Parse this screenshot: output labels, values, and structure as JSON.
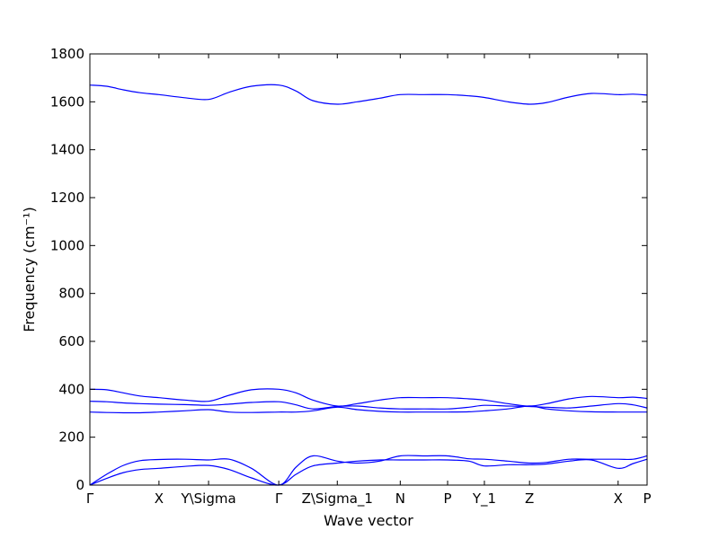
{
  "chart_data": {
    "type": "line",
    "xlabel": "Wave vector",
    "ylabel": "Frequency (cm⁻¹)",
    "ylim": [
      0,
      1800
    ],
    "xlim": [
      0,
      1
    ],
    "yticks": [
      0,
      200,
      400,
      600,
      800,
      1000,
      1200,
      1400,
      1600,
      1800
    ],
    "xticks": [
      {
        "label": "Γ",
        "x": 0.0
      },
      {
        "label": "X",
        "x": 0.124
      },
      {
        "label": "Y\\Sigma",
        "x": 0.213
      },
      {
        "label": "Γ",
        "x": 0.339
      },
      {
        "label": "Z\\Sigma_1",
        "x": 0.444
      },
      {
        "label": "N",
        "x": 0.557
      },
      {
        "label": "P",
        "x": 0.642
      },
      {
        "label": "Y_1",
        "x": 0.708
      },
      {
        "label": "Z",
        "x": 0.789
      },
      {
        "label": "X",
        "x": 0.948
      },
      {
        "label": "P",
        "x": 1.0
      }
    ],
    "line_color": "#0000ff",
    "grid": false,
    "series": [
      {
        "x": [
          0,
          0.03,
          0.06,
          0.09,
          0.124,
          0.17,
          0.213,
          0.25,
          0.29,
          0.339,
          0.37,
          0.4,
          0.444,
          0.48,
          0.52,
          0.557,
          0.6,
          0.642,
          0.68,
          0.708,
          0.75,
          0.789,
          0.82,
          0.86,
          0.9,
          0.948,
          0.975,
          1.0
        ],
        "y": [
          1670,
          1665,
          1650,
          1638,
          1630,
          1617,
          1610,
          1640,
          1665,
          1670,
          1645,
          1605,
          1590,
          1600,
          1615,
          1630,
          1630,
          1630,
          1625,
          1618,
          1600,
          1590,
          1597,
          1620,
          1635,
          1630,
          1632,
          1628
        ]
      },
      {
        "x": [
          0,
          0.03,
          0.06,
          0.09,
          0.124,
          0.17,
          0.213,
          0.25,
          0.29,
          0.339,
          0.37,
          0.4,
          0.444,
          0.48,
          0.52,
          0.557,
          0.6,
          0.642,
          0.68,
          0.708,
          0.75,
          0.789,
          0.82,
          0.86,
          0.9,
          0.948,
          0.975,
          1.0
        ],
        "y": [
          400,
          398,
          385,
          372,
          365,
          355,
          350,
          375,
          398,
          400,
          385,
          355,
          330,
          340,
          355,
          365,
          365,
          365,
          360,
          355,
          340,
          330,
          340,
          360,
          370,
          365,
          367,
          362
        ]
      },
      {
        "x": [
          0,
          0.03,
          0.06,
          0.09,
          0.124,
          0.17,
          0.213,
          0.25,
          0.29,
          0.339,
          0.37,
          0.4,
          0.444,
          0.48,
          0.52,
          0.557,
          0.6,
          0.642,
          0.68,
          0.708,
          0.75,
          0.789,
          0.82,
          0.86,
          0.9,
          0.948,
          0.975,
          1.0
        ],
        "y": [
          350,
          348,
          343,
          340,
          338,
          336,
          333,
          338,
          345,
          348,
          335,
          318,
          328,
          330,
          322,
          318,
          318,
          318,
          325,
          333,
          330,
          328,
          325,
          322,
          330,
          340,
          335,
          322
        ]
      },
      {
        "x": [
          0,
          0.03,
          0.06,
          0.09,
          0.124,
          0.17,
          0.213,
          0.25,
          0.29,
          0.339,
          0.37,
          0.4,
          0.444,
          0.48,
          0.52,
          0.557,
          0.6,
          0.642,
          0.68,
          0.708,
          0.75,
          0.789,
          0.82,
          0.86,
          0.9,
          0.948,
          0.975,
          1.0
        ],
        "y": [
          305,
          303,
          302,
          302,
          305,
          310,
          315,
          305,
          303,
          305,
          305,
          310,
          325,
          315,
          308,
          305,
          305,
          305,
          306,
          310,
          318,
          330,
          318,
          310,
          306,
          305,
          305,
          305
        ]
      },
      {
        "x": [
          0,
          0.03,
          0.06,
          0.09,
          0.124,
          0.17,
          0.213,
          0.25,
          0.29,
          0.339,
          0.37,
          0.4,
          0.444,
          0.48,
          0.52,
          0.557,
          0.6,
          0.642,
          0.68,
          0.708,
          0.75,
          0.789,
          0.82,
          0.86,
          0.9,
          0.948,
          0.975,
          1.0
        ],
        "y": [
          0,
          45,
          82,
          102,
          107,
          108,
          105,
          108,
          70,
          0,
          75,
          122,
          100,
          92,
          100,
          122,
          122,
          122,
          110,
          108,
          100,
          92,
          95,
          108,
          108,
          108,
          108,
          122
        ]
      },
      {
        "x": [
          0,
          0.03,
          0.06,
          0.09,
          0.124,
          0.17,
          0.213,
          0.25,
          0.29,
          0.339,
          0.37,
          0.4,
          0.444,
          0.48,
          0.52,
          0.557,
          0.6,
          0.642,
          0.68,
          0.708,
          0.75,
          0.789,
          0.82,
          0.86,
          0.9,
          0.948,
          0.975,
          1.0
        ],
        "y": [
          0,
          28,
          52,
          65,
          70,
          78,
          82,
          65,
          30,
          0,
          45,
          80,
          92,
          100,
          105,
          105,
          105,
          105,
          100,
          80,
          85,
          85,
          88,
          100,
          105,
          70,
          90,
          108
        ]
      }
    ]
  }
}
